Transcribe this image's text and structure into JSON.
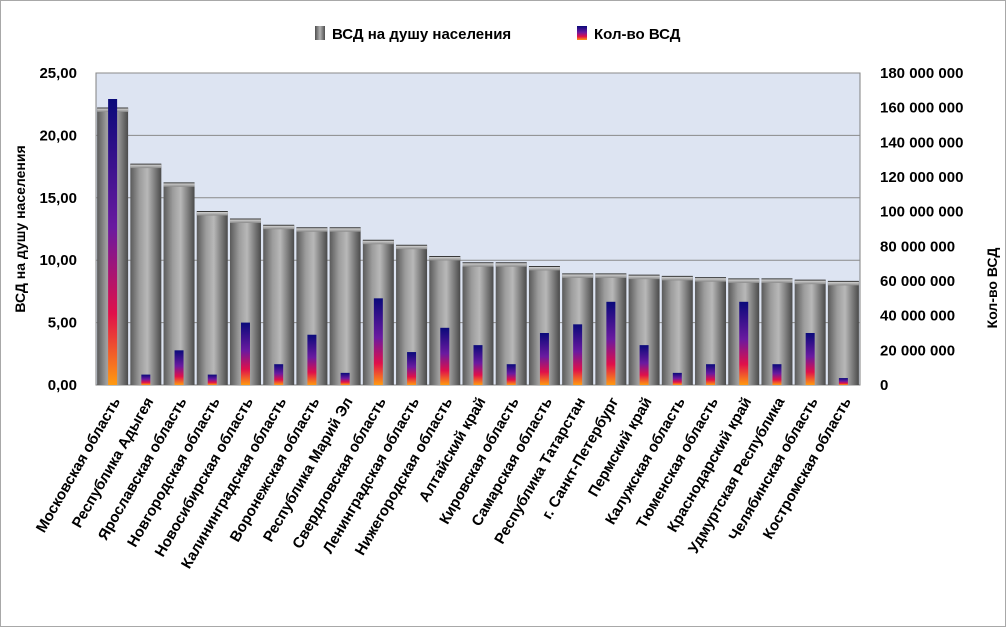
{
  "chart_data": {
    "type": "bar",
    "categories": [
      "Московская область",
      "Республика Адыгея",
      "Ярославская область",
      "Новгородская область",
      "Новосибирская область",
      "Калининградская область",
      "Воронежская область",
      "Республика Марий Эл",
      "Свердловская область",
      "Ленинградская область",
      "Нижегородская область",
      "Алтайский край",
      "Кировская область",
      "Самарская область",
      "Республика Татарстан",
      "г. Санкт-Петербург",
      "Пермский край",
      "Калужская область",
      "Тюменская область",
      "Краснодарский край",
      "Удмуртская Республика",
      "Челябинская область",
      "Костромская область"
    ],
    "series": [
      {
        "name": "ВСД на душу населения",
        "axis": "left",
        "values": [
          22.2,
          17.7,
          16.2,
          13.9,
          13.3,
          12.8,
          12.6,
          12.6,
          11.6,
          11.2,
          10.3,
          9.8,
          9.8,
          9.5,
          8.9,
          8.9,
          8.8,
          8.7,
          8.6,
          8.5,
          8.5,
          8.4,
          8.3
        ]
      },
      {
        "name": "Кол-во ВСД",
        "axis": "right",
        "values": [
          165000000,
          6000000,
          20000000,
          6000000,
          36000000,
          12000000,
          29000000,
          7000000,
          50000000,
          19000000,
          33000000,
          23000000,
          12000000,
          30000000,
          35000000,
          48000000,
          23000000,
          7000000,
          12000000,
          48000000,
          12000000,
          30000000,
          4000000
        ]
      }
    ],
    "ylabel": "ВСД на душу населения",
    "y2label": "Кол-во ВСД",
    "ylim": [
      0,
      25
    ],
    "y2lim": [
      0,
      180000000
    ],
    "yticks": [
      "0,00",
      "5,00",
      "10,00",
      "15,00",
      "20,00",
      "25,00"
    ],
    "y2ticks": [
      "0",
      "20 000 000",
      "40 000 000",
      "60 000 000",
      "80 000 000",
      "100 000 000",
      "120 000 000",
      "140 000 000",
      "160 000 000",
      "180 000 000"
    ],
    "legend_position": "top",
    "grid": true,
    "colors": {
      "plot_bg": "#dde4f2",
      "bar1_light": "#b2b2b2",
      "bar1_dark": "#4e4e4e",
      "bar2_top": "#0a0a7a",
      "bar2_mid": "#e0104a",
      "bar2_bottom": "#ff9a10"
    }
  }
}
